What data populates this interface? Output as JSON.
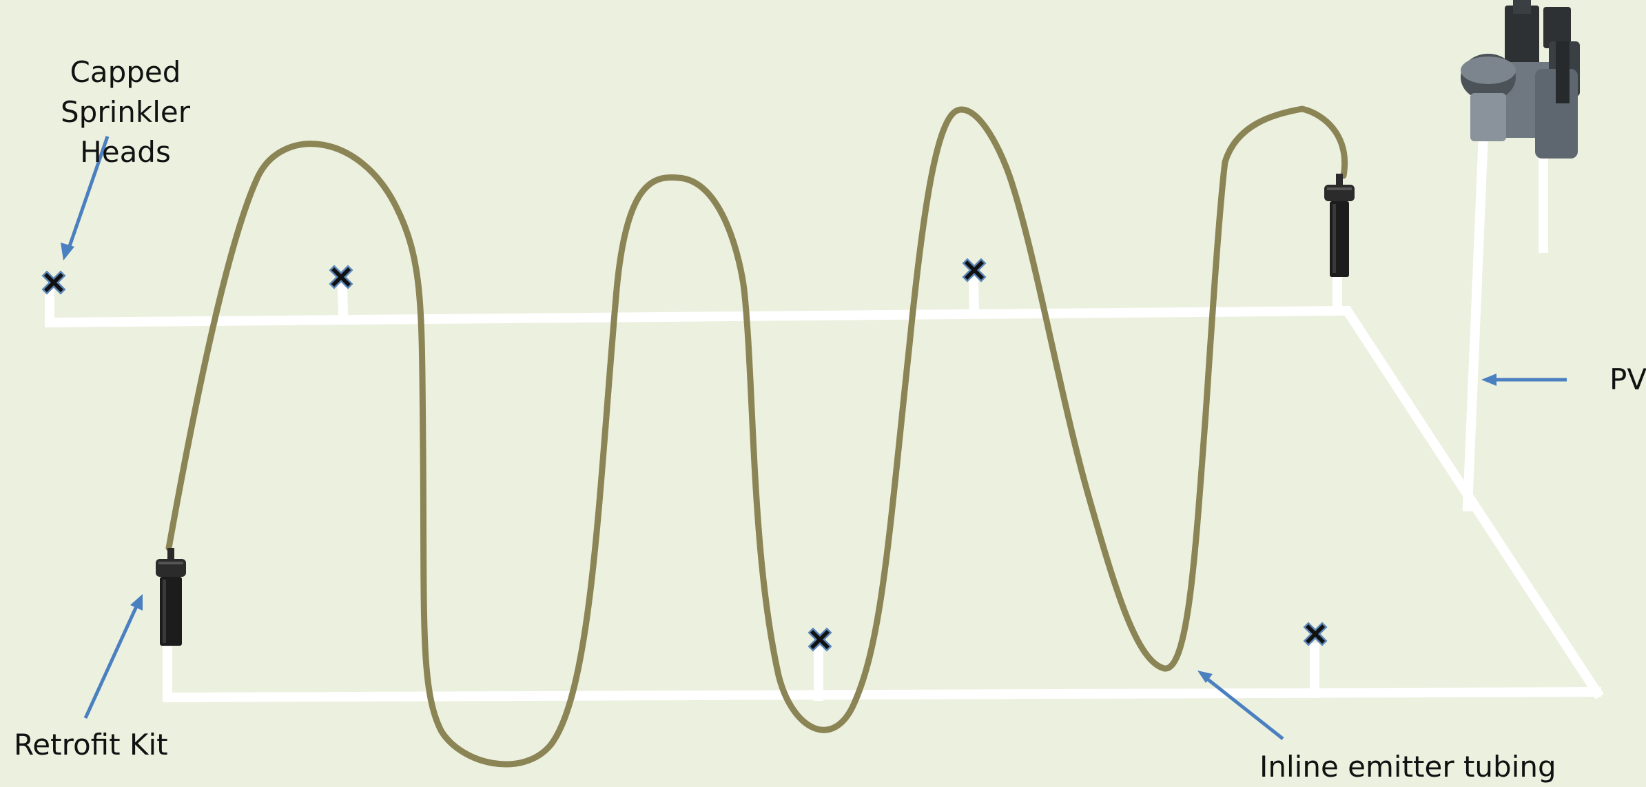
{
  "labels": {
    "capped_line1": "Capped Sprinkler",
    "capped_line2": "Heads",
    "retrofit": "Retrofit Kit",
    "pvc": "PVC",
    "inline": "Inline emitter tubing"
  },
  "colors": {
    "background": "#ecf0df",
    "pipe": "#ffffff",
    "tubing": "#8b8455",
    "arrow": "#4a7fc0",
    "cap_fill": "#5b86b8",
    "cap_x": "#111111",
    "retrofit_body": "#1c1c1c",
    "valve_body": "#6f7880"
  },
  "icons": {
    "capped_head": "x-mark-icon",
    "retrofit_head": "sprinkler-head-icon",
    "valve": "valve-icon"
  }
}
